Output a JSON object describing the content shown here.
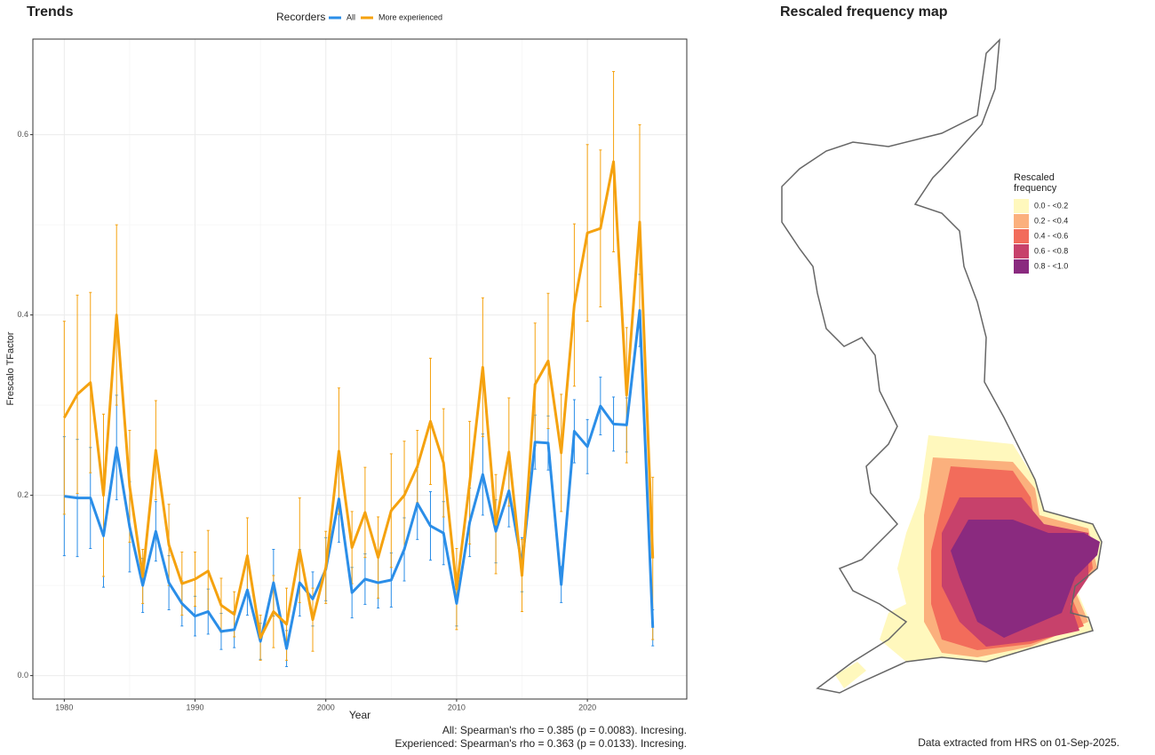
{
  "chart_data": {
    "type": "line",
    "title": "Trends",
    "x_label": "Year",
    "y_label": "Frescalo TFactor",
    "legend_title": "Recorders",
    "x": [
      1980,
      1981,
      1982,
      1983,
      1984,
      1985,
      1986,
      1987,
      1988,
      1989,
      1990,
      1991,
      1992,
      1993,
      1994,
      1995,
      1996,
      1997,
      1998,
      1999,
      2000,
      2001,
      2002,
      2003,
      2004,
      2005,
      2006,
      2007,
      2008,
      2009,
      2010,
      2011,
      2012,
      2013,
      2014,
      2015,
      2016,
      2017,
      2018,
      2019,
      2020,
      2021,
      2022,
      2023,
      2024,
      2025
    ],
    "series": [
      {
        "name": "All",
        "color": "#2b8ee8",
        "values": [
          0.199,
          0.197,
          0.197,
          0.155,
          0.253,
          0.165,
          0.1,
          0.16,
          0.103,
          0.08,
          0.066,
          0.071,
          0.049,
          0.051,
          0.095,
          0.038,
          0.103,
          0.03,
          0.103,
          0.085,
          0.118,
          0.196,
          0.092,
          0.107,
          0.103,
          0.106,
          0.14,
          0.191,
          0.166,
          0.158,
          0.08,
          0.17,
          0.223,
          0.16,
          0.205,
          0.123,
          0.259,
          0.258,
          0.101,
          0.271,
          0.254,
          0.299,
          0.279,
          0.278,
          0.405,
          0.053
        ],
        "errors": [
          0.066,
          0.065,
          0.056,
          0.057,
          0.058,
          0.05,
          0.03,
          0.033,
          0.03,
          0.025,
          0.022,
          0.025,
          0.02,
          0.02,
          0.028,
          0.02,
          0.037,
          0.02,
          0.037,
          0.03,
          0.035,
          0.048,
          0.028,
          0.028,
          0.028,
          0.03,
          0.035,
          0.04,
          0.038,
          0.035,
          0.025,
          0.038,
          0.045,
          0.035,
          0.04,
          0.03,
          0.03,
          0.03,
          0.02,
          0.035,
          0.03,
          0.032,
          0.03,
          0.03,
          0.04,
          0.02
        ]
      },
      {
        "name": "More experienced",
        "color": "#f5a20f",
        "values": [
          0.286,
          0.312,
          0.325,
          0.2,
          0.4,
          0.21,
          0.11,
          0.25,
          0.145,
          0.102,
          0.107,
          0.116,
          0.078,
          0.068,
          0.133,
          0.042,
          0.071,
          0.057,
          0.139,
          0.062,
          0.12,
          0.249,
          0.142,
          0.181,
          0.131,
          0.183,
          0.2,
          0.232,
          0.282,
          0.236,
          0.096,
          0.214,
          0.342,
          0.168,
          0.248,
          0.111,
          0.323,
          0.349,
          0.247,
          0.411,
          0.491,
          0.496,
          0.57,
          0.311,
          0.503,
          0.13
        ],
        "errors": [
          0.107,
          0.11,
          0.1,
          0.09,
          0.1,
          0.062,
          0.03,
          0.055,
          0.045,
          0.035,
          0.03,
          0.045,
          0.03,
          0.025,
          0.042,
          0.025,
          0.04,
          0.04,
          0.058,
          0.035,
          0.04,
          0.07,
          0.04,
          0.05,
          0.045,
          0.063,
          0.06,
          0.04,
          0.07,
          0.06,
          0.045,
          0.068,
          0.077,
          0.055,
          0.06,
          0.04,
          0.068,
          0.075,
          0.065,
          0.09,
          0.098,
          0.087,
          0.1,
          0.075,
          0.108,
          0.09
        ]
      }
    ],
    "xlim": [
      1977.6,
      2027.6
    ],
    "xticks": [
      1980,
      1990,
      2000,
      2010,
      2020
    ],
    "ylim": [
      -0.026,
      0.706
    ],
    "yticks": [
      {
        "value": 0,
        "label": "0.0"
      },
      0.2,
      0.4,
      0.6
    ],
    "grid": true,
    "legend_position": "top",
    "annotations": [
      "All: Spearman's rho = 0.385 (p = 0.0083). Incresing.",
      "Experienced: Spearman's rho = 0.363 (p = 0.0133). Incresing."
    ]
  },
  "map": {
    "title": "Rescaled frequency map",
    "legend_title": [
      "Rescaled",
      "frequency"
    ],
    "legend": [
      {
        "label": "0.0 - <0.2",
        "color": "#fff8bd"
      },
      {
        "label": "0.2 - <0.4",
        "color": "#fbb07d"
      },
      {
        "label": "0.4 - <0.6",
        "color": "#f26c5b"
      },
      {
        "label": "0.6 - <0.8",
        "color": "#c7416b"
      },
      {
        "label": "0.8 - <1.0",
        "color": "#8a2a7f"
      }
    ],
    "note": "Data extracted from HRS on 01-Sep-2025."
  }
}
